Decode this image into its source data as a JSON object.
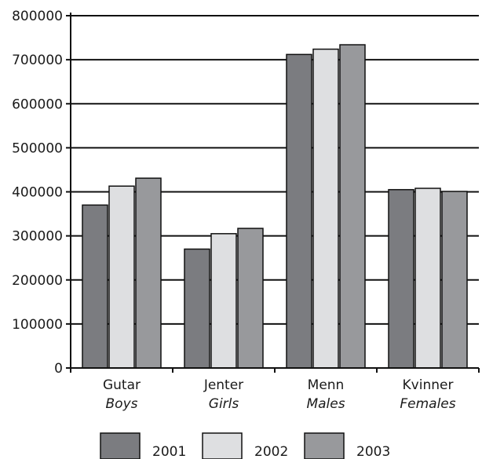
{
  "chart_data": {
    "type": "bar",
    "categories": [
      "Gutar",
      "Jenter",
      "Menn",
      "Kvinner"
    ],
    "category_subtitles": [
      "Boys",
      "Girls",
      "Males",
      "Females"
    ],
    "series": [
      {
        "name": "2001",
        "values": [
          370000,
          270000,
          712000,
          405000
        ],
        "color": "#7b7c80"
      },
      {
        "name": "2002",
        "values": [
          413000,
          305000,
          724000,
          408000
        ],
        "color": "#dedfe1"
      },
      {
        "name": "2003",
        "values": [
          431000,
          317000,
          734000,
          401000
        ],
        "color": "#98999c"
      }
    ],
    "yticks": [
      0,
      100000,
      200000,
      300000,
      400000,
      500000,
      600000,
      700000,
      800000
    ],
    "ytick_labels": [
      "0",
      "100000",
      "200000",
      "300000",
      "400000",
      "500000",
      "600000",
      "700000",
      "800000"
    ],
    "ylim": [
      0,
      800000
    ],
    "grid": true,
    "legend_position": "bottom",
    "title": "",
    "xlabel": "",
    "ylabel": ""
  }
}
